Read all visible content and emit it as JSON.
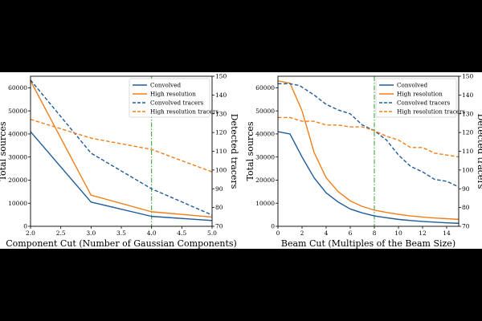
{
  "colors": {
    "convolved": "#1f5b9a",
    "high_resolution": "#f07f1a",
    "cut_marker": "#2ca02c",
    "frame": "#000000",
    "background": "#ffffff",
    "letterbox": "#000000"
  },
  "chart_data": [
    {
      "type": "line",
      "xlabel": "Component Cut (Number of Gaussian Components)",
      "ylabel_left": "Total sources",
      "ylabel_right": "Detected tracers",
      "xlim": [
        2.0,
        5.0
      ],
      "ylim_left": [
        0,
        65000
      ],
      "ylim_right": [
        70,
        150
      ],
      "x_ticks": [
        2.0,
        2.5,
        3.0,
        3.5,
        4.0,
        4.5,
        5.0
      ],
      "x_tick_labels": [
        "2.0",
        "2.5",
        "3.0",
        "3.5",
        "4.0",
        "4.5",
        "5.0"
      ],
      "y_left_ticks": [
        0,
        10000,
        20000,
        30000,
        40000,
        50000,
        60000
      ],
      "y_left_tick_labels": [
        "0",
        "10000",
        "20000",
        "30000",
        "40000",
        "50000",
        "60000"
      ],
      "y_right_ticks": [
        70,
        80,
        90,
        100,
        110,
        120,
        130,
        140,
        150
      ],
      "y_right_tick_labels": [
        "70",
        "80",
        "90",
        "100",
        "110",
        "120",
        "130",
        "140",
        "150"
      ],
      "cut_line_x": 4.0,
      "legend": [
        "Convolved",
        "High resolution",
        "Convolved tracers",
        "High resolution tracers"
      ],
      "legend_position": "top-right",
      "series": [
        {
          "name": "Convolved",
          "axis": "left",
          "style": "solid",
          "color_key": "convolved",
          "x": [
            2,
            3,
            4,
            5
          ],
          "values": [
            41000,
            10500,
            4300,
            2500
          ]
        },
        {
          "name": "High resolution",
          "axis": "left",
          "style": "solid",
          "color_key": "high_resolution",
          "x": [
            2,
            3,
            4,
            5
          ],
          "values": [
            63000,
            13500,
            6300,
            4000
          ]
        },
        {
          "name": "Convolved tracers",
          "axis": "right",
          "style": "dashed",
          "color_key": "convolved",
          "x": [
            2,
            3,
            4,
            5
          ],
          "values": [
            148,
            109,
            90,
            76
          ]
        },
        {
          "name": "High resolution tracers",
          "axis": "right",
          "style": "dashed",
          "color_key": "high_resolution",
          "x": [
            2,
            3,
            4,
            5
          ],
          "values": [
            127,
            117,
            111,
            99
          ]
        }
      ]
    },
    {
      "type": "line",
      "xlabel": "Beam Cut (Multiples of the Beam Size)",
      "ylabel_left": "Total sources",
      "ylabel_right": "Detected tracers",
      "xlim": [
        0,
        15
      ],
      "ylim_left": [
        0,
        65000
      ],
      "ylim_right": [
        70,
        150
      ],
      "x_ticks": [
        0,
        2,
        4,
        6,
        8,
        10,
        12,
        14
      ],
      "x_tick_labels": [
        "0",
        "2",
        "4",
        "6",
        "8",
        "10",
        "12",
        "14"
      ],
      "y_left_ticks": [
        0,
        10000,
        20000,
        30000,
        40000,
        50000,
        60000
      ],
      "y_left_tick_labels": [
        "0",
        "10000",
        "20000",
        "30000",
        "40000",
        "50000",
        "60000"
      ],
      "y_right_ticks": [
        70,
        80,
        90,
        100,
        110,
        120,
        130,
        140,
        150
      ],
      "y_right_tick_labels": [
        "70",
        "80",
        "90",
        "100",
        "110",
        "120",
        "130",
        "140",
        "150"
      ],
      "cut_line_x": 8,
      "legend": [
        "Convolved",
        "High resolution",
        "Convolved tracers",
        "High resolution tracers"
      ],
      "legend_position": "top-right",
      "series": [
        {
          "name": "Convolved",
          "axis": "left",
          "style": "solid",
          "color_key": "convolved",
          "x": [
            0,
            1,
            2,
            3,
            4,
            5,
            6,
            7,
            8,
            9,
            10,
            11,
            12,
            13,
            14,
            15
          ],
          "values": [
            41000,
            40000,
            30000,
            21000,
            14500,
            10500,
            7500,
            5800,
            4500,
            3700,
            3000,
            2500,
            2100,
            1800,
            1500,
            1300
          ]
        },
        {
          "name": "High resolution",
          "axis": "left",
          "style": "solid",
          "color_key": "high_resolution",
          "x": [
            0,
            1,
            2,
            3,
            4,
            5,
            6,
            7,
            8,
            9,
            10,
            11,
            12,
            13,
            14,
            15
          ],
          "values": [
            63000,
            62000,
            50000,
            32000,
            21000,
            15000,
            11000,
            8600,
            7000,
            6000,
            5200,
            4500,
            4000,
            3600,
            3300,
            3000
          ]
        },
        {
          "name": "Convolved tracers",
          "axis": "right",
          "style": "dashed",
          "color_key": "convolved",
          "x": [
            0,
            1,
            1.8,
            3,
            4,
            5,
            6,
            7,
            8,
            9,
            10,
            11,
            12,
            13,
            14,
            15
          ],
          "values": [
            146,
            146,
            145,
            140,
            135,
            132,
            130,
            124,
            121,
            116,
            108,
            102,
            99,
            95,
            94,
            91
          ]
        },
        {
          "name": "High resolution tracers",
          "axis": "right",
          "style": "dashed",
          "color_key": "high_resolution",
          "x": [
            0,
            1,
            2,
            3,
            4,
            5,
            6,
            7,
            8,
            9,
            10,
            11,
            12,
            13,
            14,
            15
          ],
          "values": [
            128,
            128,
            126,
            126,
            124,
            124,
            123,
            123,
            121,
            118,
            116,
            112,
            112,
            109,
            108,
            107
          ]
        }
      ]
    }
  ]
}
